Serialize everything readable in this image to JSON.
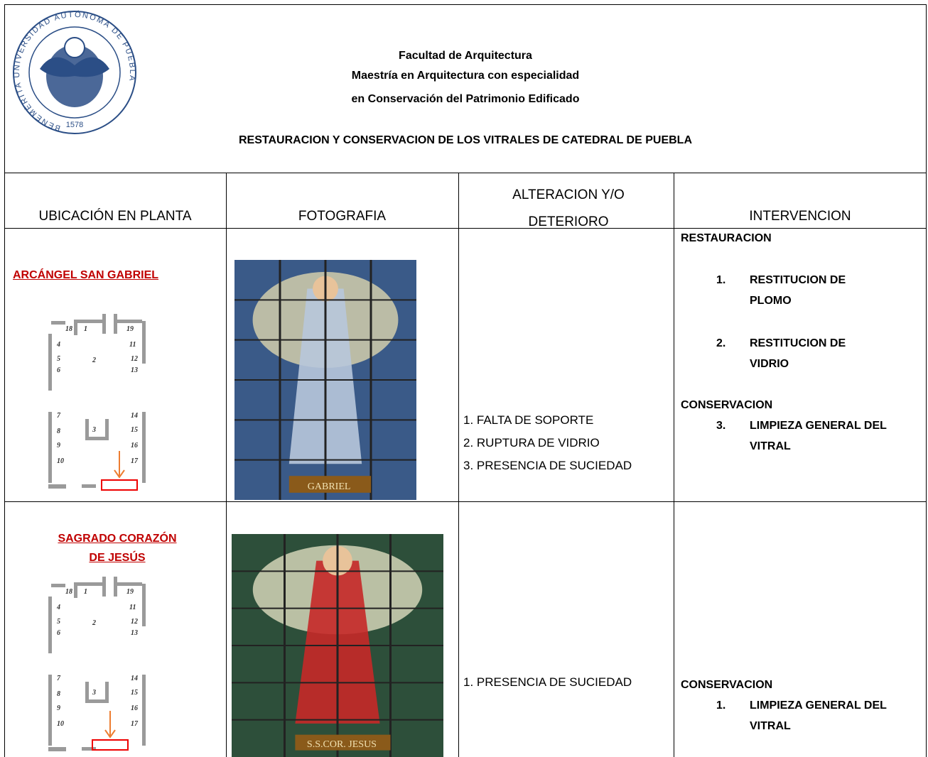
{
  "header": {
    "logo": {
      "text": "BENEMÉRITA UNIVERSIDAD AUTÓNOMA DE PUEBLA",
      "year": "1578"
    },
    "lines": [
      "Facultad de Arquitectura",
      "Maestría en Arquitectura con especialidad",
      "en Conservación del Patrimonio Edificado"
    ],
    "title": "RESTAURACION Y CONSERVACION DE LOS VITRALES  DE CATEDRAL DE PUEBLA"
  },
  "plan": {
    "labels": [
      "18",
      "1",
      "19",
      "4",
      "11",
      "5",
      "2",
      "12",
      "6",
      "13",
      "7",
      "14",
      "8",
      "3",
      "15",
      "9",
      "16",
      "10",
      "17"
    ]
  },
  "table": {
    "columns": [
      "UBICACIÓN EN PLANTA",
      "FOTOGRAFIA",
      "ALTERACION Y/O DETERIORO",
      "INTERVENCION"
    ],
    "rows": [
      {
        "location": "ARCÁNGEL SAN  GABRIEL",
        "photo_caption": "GABRIEL",
        "damage": [
          "1. FALTA DE SOPORTE",
          "2. RUPTURA DE VIDRIO",
          "3. PRESENCIA DE SUCIEDAD"
        ],
        "intervention": [
          {
            "heading": "RESTAURACION",
            "items": [
              {
                "number": "1.",
                "text": "RESTITUCION DE PLOMO"
              },
              {
                "number": "2.",
                "text": "RESTITUCION DE VIDRIO"
              }
            ]
          },
          {
            "heading": "CONSERVACION",
            "items": [
              {
                "number": "3.",
                "text": "LIMPIEZA GENERAL DEL VITRAL"
              }
            ]
          }
        ]
      },
      {
        "location": "SAGRADO CORAZÓN DE JESÚS",
        "photo_caption": "S.S.COR. JESUS",
        "damage": [
          "1. PRESENCIA DE SUCIEDAD"
        ],
        "intervention": [
          {
            "heading": "CONSERVACION",
            "items": [
              {
                "number": "1.",
                "text": "LIMPIEZA GENERAL DEL VITRAL"
              }
            ]
          }
        ]
      }
    ]
  }
}
